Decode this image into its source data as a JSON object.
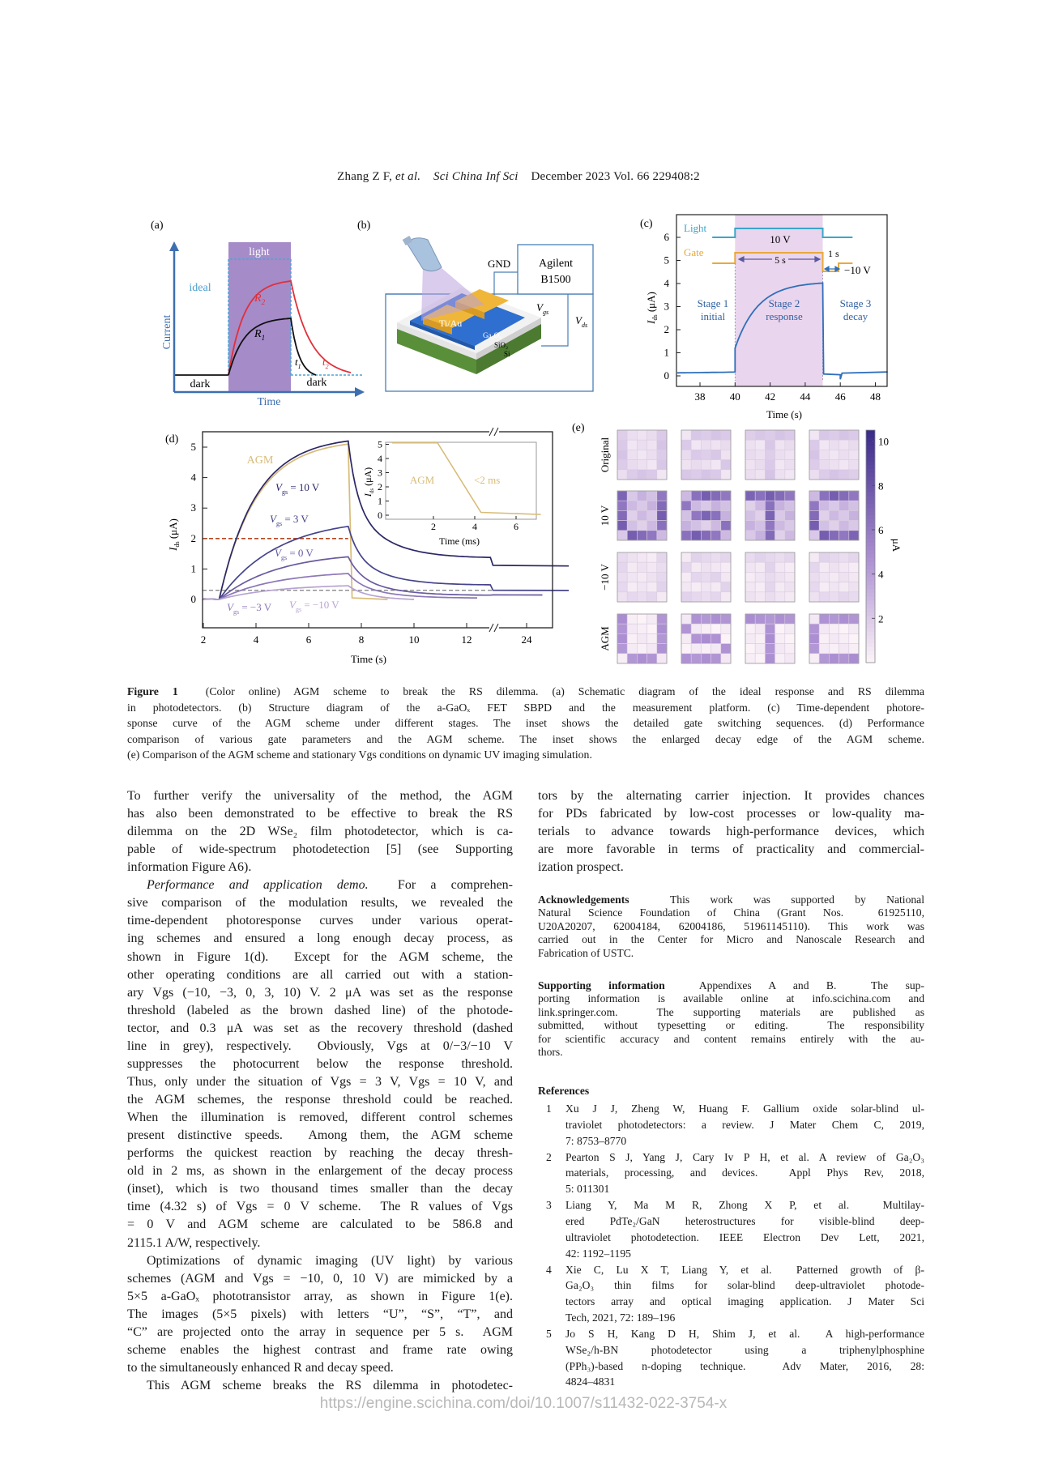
{
  "header": {
    "authors": "Zhang Z F, ",
    "etal": "et al.",
    "journal": "Sci China Inf Sci",
    "issue": "December 2023 Vol. 66 229408:2"
  },
  "figure": {
    "a": {
      "label": "(a)",
      "light": "light",
      "ideal": "ideal",
      "ylabel": "Current",
      "xlabel": "Time",
      "dark_left": "dark",
      "dark_right": "dark",
      "r1": "R",
      "r1_sub": "1",
      "r2": "R",
      "r2_sub": "2",
      "t1": "t",
      "t1_sub": "1",
      "t2": "t",
      "t2_sub": "2"
    },
    "b": {
      "label": "(b)",
      "gnd": "GND",
      "instrument_line1": "Agilent",
      "instrument_line2": "B1500",
      "vgs": "V",
      "vgs_sub": "gs",
      "vds": "V",
      "vds_sub": "ds",
      "electrode": "Ti/Au",
      "channel": "Ga₂O₃",
      "oxide": "SiO₂",
      "substrate": "Si"
    },
    "c": {
      "label": "(c)",
      "light": "Light",
      "gate": "Gate",
      "high_v": "10 V",
      "duration": "5 s",
      "short": "1 s",
      "low_v": "−10 V",
      "stage1": [
        "Stage 1",
        "initial"
      ],
      "stage2": [
        "Stage 2",
        "response"
      ],
      "stage3": [
        "Stage 3",
        "decay"
      ],
      "ylabel": "I",
      "ylabel_sub": "ds",
      "ylabel_unit": " (μA)",
      "xlabel": "Time (s)",
      "xticks": [
        "38",
        "40",
        "42",
        "44",
        "46",
        "48"
      ],
      "yticks": [
        "0",
        "1",
        "2",
        "3",
        "4",
        "5",
        "6"
      ],
      "colors": {
        "light": "#3aa6c9",
        "gate": "#e8a93a",
        "current": "#2f6fba",
        "shade": "#ead5ee"
      }
    },
    "d": {
      "label": "(d)",
      "ylabel": "I",
      "ylabel_sub": "ds",
      "ylabel_unit": " (μA)",
      "xlabel": "Time (s)",
      "xticks": [
        "2",
        "4",
        "6",
        "8",
        "10",
        "12",
        "24"
      ],
      "yticks": [
        "0",
        "1",
        "2",
        "3",
        "4",
        "5"
      ],
      "response_threshold_uA": 2,
      "recovery_threshold_uA": 0.3,
      "series": [
        {
          "name": "AGM",
          "peak": 5.1,
          "color": "#d8bb78"
        },
        {
          "name": "V",
          "sub": "gs",
          "suffix": " = 10 V",
          "peak": 5.2,
          "color": "#2b2766"
        },
        {
          "name": "V",
          "sub": "gs",
          "suffix": " = 3 V",
          "peak": 2.4,
          "color": "#45448a"
        },
        {
          "name": "V",
          "sub": "gs",
          "suffix": " = 0 V",
          "peak": 1.4,
          "color": "#6a5aa0"
        },
        {
          "name": "V",
          "sub": "gs",
          "suffix": " = −3 V",
          "peak": 0.85,
          "color": "#8c77b8"
        },
        {
          "name": "V",
          "sub": "gs",
          "suffix": " = −10 V",
          "peak": 0.45,
          "color": "#b7a3d2"
        }
      ],
      "inset": {
        "label": "AGM",
        "note": "<2  ms",
        "xlabel": "Time (ms)",
        "ylabel": "I",
        "ylabel_sub": "ds",
        "ylabel_unit": " (μA)",
        "xticks": [
          "2",
          "4",
          "6"
        ],
        "yticks": [
          "0",
          "1",
          "2",
          "3",
          "4",
          "5"
        ]
      }
    },
    "e": {
      "label": "(e)",
      "rows": [
        {
          "label": "Original",
          "on": 2.0,
          "off": 0.9
        },
        {
          "label": "10 V",
          "on": 6.8,
          "off": 2.4
        },
        {
          "label": "−10 V",
          "on": 1.3,
          "off": 0.6
        },
        {
          "label": "AGM",
          "on": 4.6,
          "off": 0.3
        }
      ],
      "letters": [
        "U",
        "S",
        "T",
        "C"
      ],
      "masks": {
        "U": [
          "10001",
          "10001",
          "10001",
          "10001",
          "01110"
        ],
        "S": [
          "01111",
          "10000",
          "01110",
          "00001",
          "11110"
        ],
        "T": [
          "11111",
          "00100",
          "00100",
          "00100",
          "00100"
        ],
        "C": [
          "01111",
          "10000",
          "10000",
          "10000",
          "01111"
        ]
      },
      "colorbar_ticks": [
        "2",
        "4",
        "6",
        "8",
        "10"
      ],
      "colorbar_unit": "μA",
      "colorbar_max": 10.5
    }
  },
  "caption": [
    {
      "b": "Figure 1",
      "t": "   (Color online) AGM scheme to break the RS dilemma. (a) Schematic diagram of the ideal response and RS dilemma"
    },
    {
      "t": "in photodetectors. (b) Structure diagram of the a-GaOₓ FET SBPD and the measurement platform. (c) Time-dependent photore-"
    },
    {
      "t": "sponse curve of the AGM scheme under different stages. The inset shows the detailed gate switching sequences. (d) Performance"
    },
    {
      "t": "comparison of various gate parameters and the AGM scheme. The inset shows the enlarged decay edge of the AGM scheme."
    },
    {
      "t": "(e) Comparison of the AGM scheme and stationary Vgs conditions on dynamic UV imaging simulation.",
      "last": true
    }
  ],
  "left_column": [
    {
      "t": "To further verify the universality of the method, the AGM"
    },
    {
      "t": "has also been demonstrated to be effective to break the RS"
    },
    {
      "t": "dilemma on the 2D WSe₂ film photodetector, which is ca-"
    },
    {
      "t": "pable of wide-spectrum photodetection [5] (see Supporting"
    },
    {
      "t": "information Figure A6).",
      "last": true
    },
    {
      "i": "Performance and application demo.",
      "t": "  For a comprehen-",
      "indent": true
    },
    {
      "t": "sive comparison of the modulation results, we revealed the"
    },
    {
      "t": "time-dependent photoresponse curves under various operat-"
    },
    {
      "t": "ing schemes and ensured a long enough decay process, as"
    },
    {
      "t": "shown in Figure 1(d).  Except for the AGM scheme, the"
    },
    {
      "t": "other operating conditions are all carried out with a station-"
    },
    {
      "t": "ary Vgs (−10, −3, 0, 3, 10) V. 2 μA was set as the response"
    },
    {
      "t": "threshold (labeled as the brown dashed line) of the photode-"
    },
    {
      "t": "tector, and 0.3 μA was set as the recovery threshold (dashed"
    },
    {
      "t": "line in grey), respectively.  Obviously, Vgs at 0/−3/−10 V"
    },
    {
      "t": "suppresses the photocurrent below the response threshold."
    },
    {
      "t": "Thus, only under the situation of Vgs = 3 V, Vgs = 10 V, and"
    },
    {
      "t": "the AGM schemes, the response threshold could be reached."
    },
    {
      "t": "When the illumination is removed, different control schemes"
    },
    {
      "t": "present distinctive speeds.  Among them, the AGM scheme"
    },
    {
      "t": "performs the quickest reaction by reaching the decay thresh-"
    },
    {
      "t": "old in 2 ms, as shown in the enlargement of the decay process"
    },
    {
      "t": "(inset), which is two thousand times smaller than the decay"
    },
    {
      "t": "time (4.32 s) of Vgs = 0 V scheme.  The R values of Vgs"
    },
    {
      "t": "= 0 V and AGM scheme are calculated to be 586.8 and"
    },
    {
      "t": "2115.1 A/W, respectively.",
      "last": true
    },
    {
      "t": "Optimizations of dynamic imaging (UV light) by various",
      "indent": true
    },
    {
      "t": "schemes (AGM and Vgs = −10, 0, 10 V) are mimicked by a"
    },
    {
      "t": "5×5 a-GaOₓ phototransistor array, as shown in Figure 1(e)."
    },
    {
      "t": "The images (5×5 pixels) with letters “U”, “S”, “T”, and"
    },
    {
      "t": "“C” are projected onto the array in sequence per 5 s.  AGM"
    },
    {
      "t": "scheme enables the highest contrast and frame rate owing"
    },
    {
      "t": "to the simultaneously enhanced R and decay speed.",
      "last": true
    },
    {
      "t": "This AGM scheme breaks the RS dilemma in photodetec-",
      "indent": true
    }
  ],
  "right_column": [
    {
      "t": "tors by the alternating carrier injection. It provides chances"
    },
    {
      "t": "for PDs fabricated by low-cost processes or low-quality ma-"
    },
    {
      "t": "terials to advance towards high-performance devices, which"
    },
    {
      "t": "are more favorable in terms of practicality and commercial-"
    },
    {
      "t": "ization prospect.",
      "last": true
    }
  ],
  "acknowledgements": [
    {
      "b": "Acknowledgements",
      "t": "   This work was supported by National"
    },
    {
      "t": "Natural Science Foundation of China (Grant Nos.  61925110,"
    },
    {
      "t": "U20A20207, 62004184, 62004186, 51961145110). This work was"
    },
    {
      "t": "carried out in the Center for Micro and Nanoscale Research and"
    },
    {
      "t": "Fabrication of USTC.",
      "last": true
    }
  ],
  "supporting": [
    {
      "b": "Supporting information",
      "t": "   Appendixes A and B.  The sup-"
    },
    {
      "t": "porting information is available online at info.scichina.com and"
    },
    {
      "t": "link.springer.com.  The supporting materials are published as"
    },
    {
      "t": "submitted, without typesetting or editing.  The responsibility"
    },
    {
      "t": "for scientific accuracy and content remains entirely with the au-"
    },
    {
      "t": "thors.",
      "last": true
    }
  ],
  "references_title": "References",
  "references": [
    {
      "num": "1",
      "lines": [
        "Xu J J, Zheng W, Huang F. Gallium oxide solar-blind ul-",
        "traviolet photodetectors: a review. J Mater Chem C, 2019,",
        "7: 8753–8770"
      ]
    },
    {
      "num": "2",
      "lines": [
        "Pearton S J, Yang J, Cary Iv P H, et al. A review of Ga₂O₃",
        "materials, processing, and devices.  Appl Phys Rev, 2018,",
        "5: 011301"
      ]
    },
    {
      "num": "3",
      "lines": [
        "Liang Y, Ma M R, Zhong X P, et al.   Multilay-",
        "ered PdTe₂/GaN heterostructures for visible-blind deep-",
        "ultraviolet photodetection. IEEE Electron Dev Lett, 2021,",
        "42: 1192–1195"
      ]
    },
    {
      "num": "4",
      "lines": [
        "Xie C, Lu X T, Liang Y, et al.  Patterned growth of β-",
        "Ga₂O₃ thin films for solar-blind deep-ultraviolet photode-",
        "tectors array and optical imaging application. J Mater Sci",
        "Tech, 2021, 72: 189–196"
      ]
    },
    {
      "num": "5",
      "lines": [
        "Jo S H, Kang D H, Shim J, et al.  A high-performance",
        "WSe₂/h-BN photodetector using a triphenylphosphine",
        "(PPh₃)-based n-doping technique.  Adv Mater, 2016, 28:",
        "4824–4831"
      ]
    }
  ],
  "watermark": "https://engine.scichina.com/doi/10.1007/s11432-022-3754-x"
}
